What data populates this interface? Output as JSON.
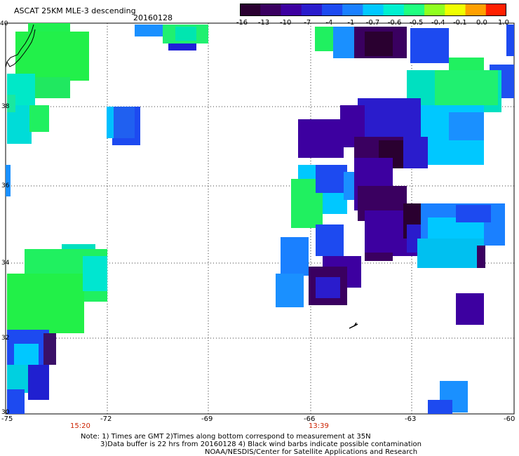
{
  "header": {
    "title": "ASCAT 25KM MLE-3 descending",
    "date": "20160128"
  },
  "colorbar": {
    "labels": [
      "-16",
      "-13",
      "-10",
      "-7",
      "-4",
      "-1",
      "-0.7",
      "-0.6",
      "-0.5",
      "-0.4",
      "-0.1",
      "0.0",
      "1.0"
    ],
    "colors": [
      "#2a0030",
      "#3a0060",
      "#3d00a0",
      "#2a1ccc",
      "#1d4af0",
      "#1a80ff",
      "#00c8ff",
      "#00f0d0",
      "#20ff80",
      "#90ff20",
      "#f0ff00",
      "#ffa000",
      "#ff2000"
    ]
  },
  "map": {
    "lon_ticks": [
      "-75",
      "-72",
      "-69",
      "-66",
      "-63",
      "-60"
    ],
    "lat_ticks": [
      "40",
      "38",
      "36",
      "34",
      "32",
      "30"
    ],
    "pass_times": [
      "15:20",
      "13:39"
    ]
  },
  "notes": {
    "line1": "Note: 1) Times are GMT 2)Times along bottom correspond to measurement at 35N",
    "line2": "3)Data buffer is 22 hrs from 20160128 4) Black wind barbs indicate possible contamination",
    "line3": "NOAA/NESDIS/Center for Satellite Applications and Research"
  }
}
